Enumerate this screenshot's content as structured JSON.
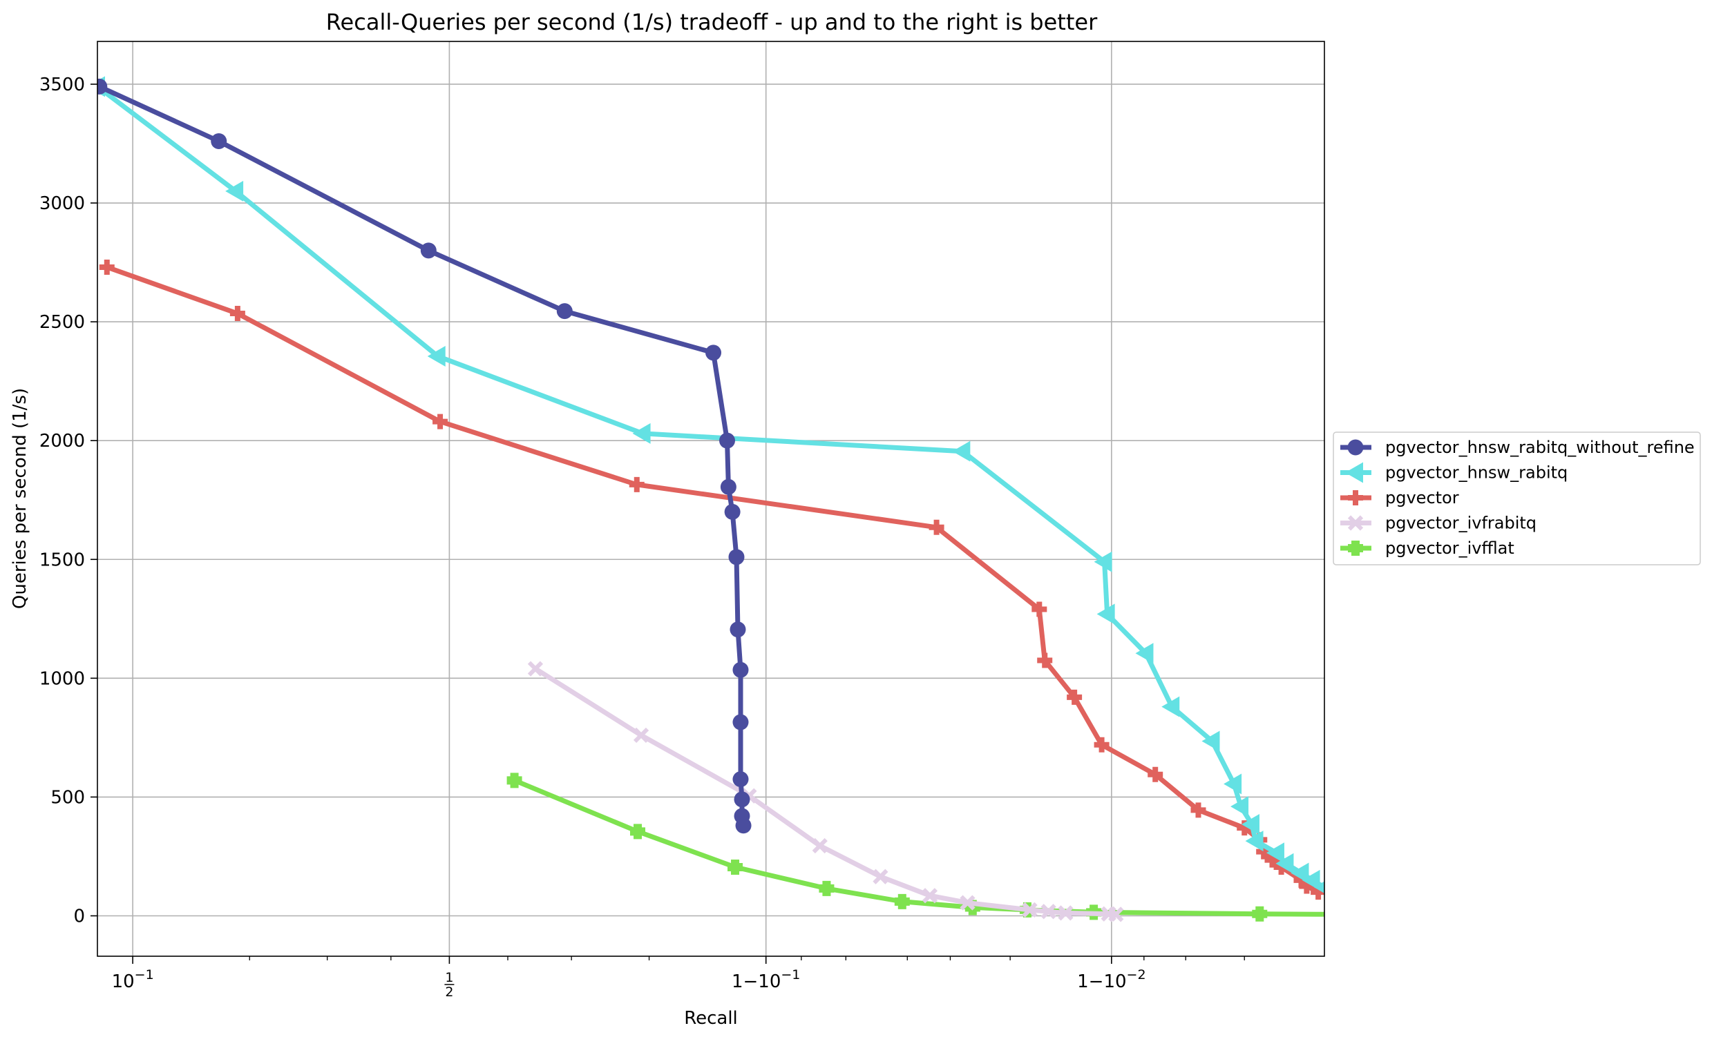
{
  "chart_data": {
    "type": "line",
    "title": "Recall-Queries per second (1/s) tradeoff - up and to the right is better",
    "xlabel": "Recall",
    "ylabel": "Queries per second (1/s)",
    "x_scale": "logit",
    "xlim": [
      0.08,
      0.9977
    ],
    "ylim": [
      -170,
      3680
    ],
    "x_ticks": [
      {
        "value": 0.1,
        "label": "10^-1"
      },
      {
        "value": 0.5,
        "label": "1/2"
      },
      {
        "value": 0.9,
        "label": "1 - 10^-1"
      },
      {
        "value": 0.99,
        "label": "1 - 10^-2"
      }
    ],
    "y_ticks": [
      0,
      500,
      1000,
      1500,
      2000,
      2500,
      3000,
      3500
    ],
    "grid": true,
    "legend_position": "center-right-outside",
    "series": [
      {
        "name": "pgvector_hnsw_rabitq_without_refine",
        "color": "#4a4d9e",
        "marker": "circle",
        "points": [
          [
            0.081,
            3490
          ],
          [
            0.168,
            3260
          ],
          [
            0.464,
            2800
          ],
          [
            0.69,
            2545
          ],
          [
            0.862,
            2370
          ],
          [
            0.873,
            2000
          ],
          [
            0.874,
            1805
          ],
          [
            0.877,
            1700
          ],
          [
            0.88,
            1510
          ],
          [
            0.881,
            1205
          ],
          [
            0.883,
            1035
          ],
          [
            0.883,
            815
          ],
          [
            0.883,
            575
          ],
          [
            0.884,
            490
          ],
          [
            0.884,
            420
          ],
          [
            0.885,
            380
          ]
        ]
      },
      {
        "name": "pgvector_hnsw_rabitq",
        "color": "#63e1e3",
        "marker": "triangle-left",
        "points": [
          [
            0.08,
            3490
          ],
          [
            0.185,
            3050
          ],
          [
            0.48,
            2355
          ],
          [
            0.793,
            2030
          ],
          [
            0.9724,
            1955
          ],
          [
            0.9895,
            1490
          ],
          [
            0.9897,
            1270
          ],
          [
            0.9921,
            1105
          ],
          [
            0.9934,
            880
          ],
          [
            0.995,
            735
          ],
          [
            0.9957,
            555
          ],
          [
            0.9959,
            460
          ],
          [
            0.9962,
            385
          ],
          [
            0.9963,
            315
          ],
          [
            0.9968,
            265
          ],
          [
            0.997,
            220
          ],
          [
            0.9973,
            180
          ],
          [
            0.9975,
            150
          ],
          [
            0.9977,
            120
          ]
        ]
      },
      {
        "name": "pgvector",
        "color": "#e0625d",
        "marker": "plus",
        "points": [
          [
            0.085,
            2730
          ],
          [
            0.187,
            2535
          ],
          [
            0.484,
            2080
          ],
          [
            0.786,
            1815
          ],
          [
            0.9671,
            1635
          ],
          [
            0.9836,
            1290
          ],
          [
            0.9842,
            1075
          ],
          [
            0.9871,
            920
          ],
          [
            0.9893,
            720
          ],
          [
            0.9926,
            595
          ],
          [
            0.9945,
            445
          ],
          [
            0.996,
            370
          ],
          [
            0.9964,
            320
          ],
          [
            0.9965,
            270
          ],
          [
            0.9967,
            235
          ],
          [
            0.9969,
            205
          ],
          [
            0.9973,
            150
          ],
          [
            0.9974,
            125
          ],
          [
            0.9976,
            100
          ]
        ]
      },
      {
        "name": "pgvector_ivfrabitq",
        "color": "#e2cfe6",
        "marker": "x",
        "points": [
          [
            0.645,
            1040
          ],
          [
            0.791,
            760
          ],
          [
            0.889,
            505
          ],
          [
            0.929,
            295
          ],
          [
            0.9522,
            165
          ],
          [
            0.9656,
            85
          ],
          [
            0.9733,
            55
          ],
          [
            0.9825,
            25
          ],
          [
            0.9846,
            18
          ],
          [
            0.9863,
            12
          ],
          [
            0.9898,
            8
          ],
          [
            0.9903,
            6
          ]
        ]
      },
      {
        "name": "pgvector_ivfflat",
        "color": "#7ee24f",
        "marker": "plus-filled",
        "points": [
          [
            0.611,
            570
          ],
          [
            0.787,
            355
          ],
          [
            0.879,
            205
          ],
          [
            0.932,
            115
          ],
          [
            0.9586,
            60
          ],
          [
            0.9742,
            35
          ],
          [
            0.9822,
            25
          ],
          [
            0.9887,
            15
          ],
          [
            0.9964,
            8
          ],
          [
            0.99849,
            5
          ]
        ]
      }
    ]
  }
}
